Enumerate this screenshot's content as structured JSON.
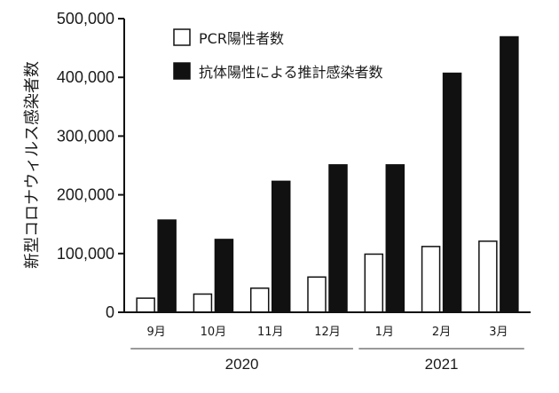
{
  "chart_data": {
    "type": "bar",
    "ylabel": "新型コロナウィルス感染者数",
    "ylim": [
      0,
      500000
    ],
    "yticks": [
      0,
      100000,
      200000,
      300000,
      400000,
      500000
    ],
    "ytick_labels": [
      "0",
      "100,000",
      "200,000",
      "300,000",
      "400,000",
      "500,000"
    ],
    "categories": [
      "9月",
      "10月",
      "11月",
      "12月",
      "1月",
      "2月",
      "3月"
    ],
    "year_groups": [
      {
        "label": "2020",
        "categories": [
          "9月",
          "10月",
          "11月",
          "12月"
        ]
      },
      {
        "label": "2021",
        "categories": [
          "1月",
          "2月",
          "3月"
        ]
      }
    ],
    "series": [
      {
        "name": "PCR陽性者数",
        "color": "#ffffff",
        "values": [
          24000,
          31000,
          41000,
          60000,
          99000,
          112000,
          121000
        ]
      },
      {
        "name": "抗体陽性による推計感染者数",
        "color": "#111111",
        "values": [
          157000,
          124000,
          223000,
          251000,
          251000,
          407000,
          469000
        ]
      }
    ],
    "legend_position": "top-right",
    "grid": false
  }
}
